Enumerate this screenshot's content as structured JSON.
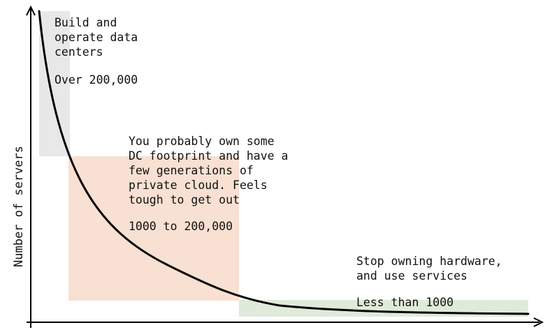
{
  "axes": {
    "y_label": "Number of servers"
  },
  "regions": [
    {
      "id": "large",
      "color": "#e8e8e8",
      "description": [
        "Build and",
        "operate data",
        "centers"
      ],
      "range": "Over 200,000"
    },
    {
      "id": "medium",
      "color": "#f8e0d2",
      "description": [
        "You probably own some",
        "DC footprint and have a",
        "few generations of",
        "private cloud. Feels",
        "tough to get out"
      ],
      "range": "1000 to 200,000"
    },
    {
      "id": "small",
      "color": "#dfeadb",
      "description": [
        "Stop owning hardware,",
        "and use services"
      ],
      "range": "Less than 1000"
    }
  ]
}
